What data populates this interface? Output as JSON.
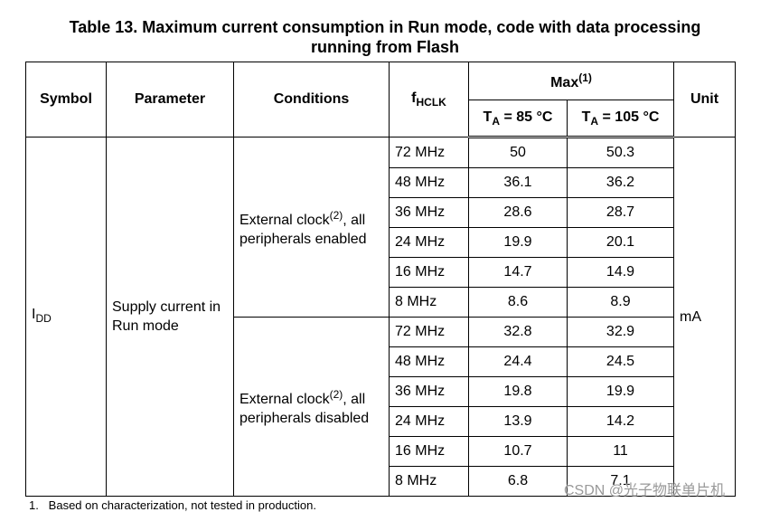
{
  "title": [
    "Table 13. Maximum current consumption in Run mode, code with data processing",
    "running from Flash"
  ],
  "header": {
    "symbol": "Symbol",
    "parameter": "Parameter",
    "conditions": "Conditions",
    "fhclk": {
      "main": "f",
      "sub": "HCLK"
    },
    "max": {
      "text": "Max",
      "note": "(1)"
    },
    "ta85": {
      "main": "T",
      "sub": "A",
      "rest": " = 85 °C"
    },
    "ta105": {
      "main": "T",
      "sub": "A",
      "rest": " = 105 °C"
    },
    "unit": "Unit"
  },
  "table": {
    "symbol": {
      "main": "I",
      "sub": "DD"
    },
    "parameter": "Supply current in Run mode",
    "unit": "mA",
    "groups": [
      {
        "condition": {
          "text": "External clock",
          "note": "(2)",
          "rest": ", all peripherals enabled"
        },
        "rows": [
          [
            "72 MHz",
            "50",
            "50.3"
          ],
          [
            "48 MHz",
            "36.1",
            "36.2"
          ],
          [
            "36 MHz",
            "28.6",
            "28.7"
          ],
          [
            "24 MHz",
            "19.9",
            "20.1"
          ],
          [
            "16 MHz",
            "14.7",
            "14.9"
          ],
          [
            "8 MHz",
            "8.6",
            "8.9"
          ]
        ]
      },
      {
        "condition": {
          "text": "External clock",
          "note": "(2)",
          "rest": ", all peripherals disabled"
        },
        "rows": [
          [
            "72 MHz",
            "32.8",
            "32.9"
          ],
          [
            "48 MHz",
            "24.4",
            "24.5"
          ],
          [
            "36 MHz",
            "19.8",
            "19.9"
          ],
          [
            "24 MHz",
            "13.9",
            "14.2"
          ],
          [
            "16 MHz",
            "10.7",
            "11"
          ],
          [
            "8 MHz",
            "6.8",
            "7.1"
          ]
        ]
      }
    ]
  },
  "footnote": "1.   Based on characterization, not tested in production.",
  "watermark": "CSDN @光子物联单片机"
}
